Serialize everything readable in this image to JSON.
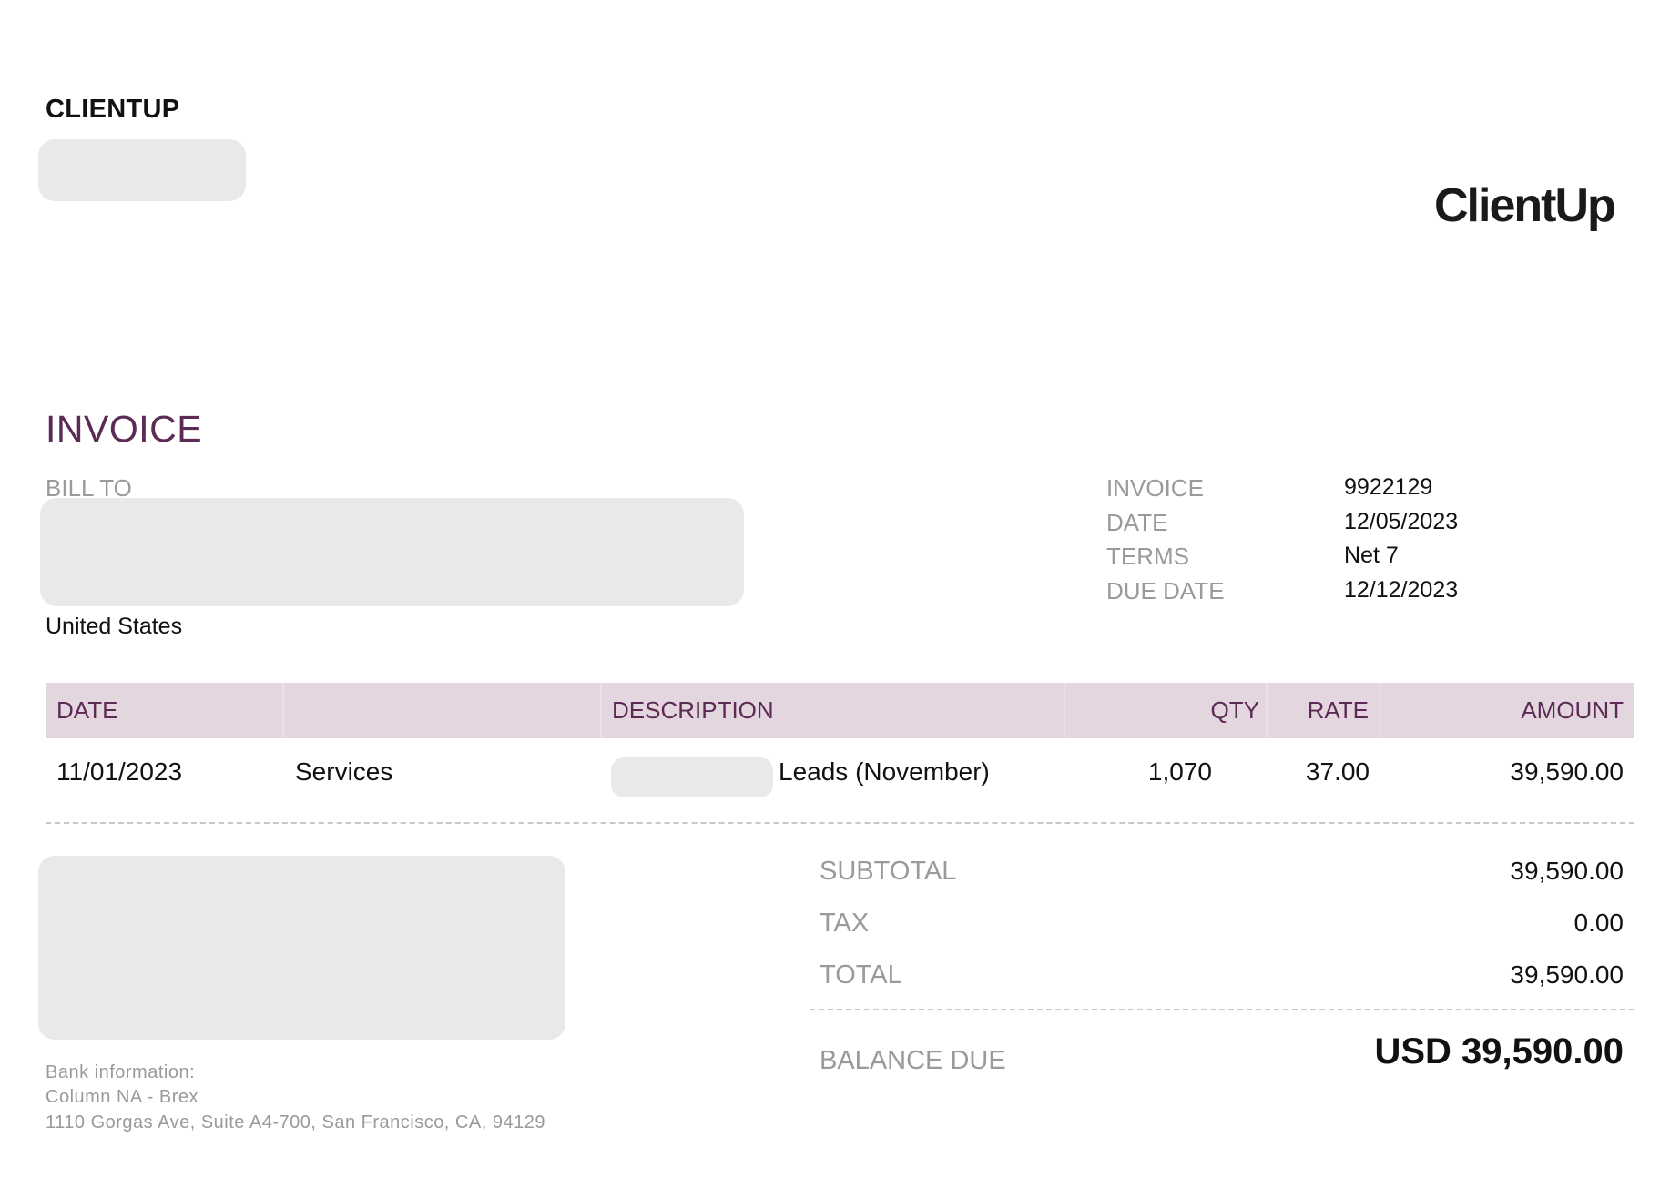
{
  "header": {
    "company_name": "CLIENTUP",
    "logo_text": "ClientUp"
  },
  "invoice": {
    "title": "INVOICE",
    "bill_to_label": "BILL TO",
    "bill_to_country": "United States",
    "meta": [
      {
        "label": "INVOICE",
        "value": "9922129"
      },
      {
        "label": "DATE",
        "value": "12/05/2023"
      },
      {
        "label": "TERMS",
        "value": "Net 7"
      },
      {
        "label": "DUE DATE",
        "value": "12/12/2023"
      }
    ]
  },
  "table": {
    "headers": {
      "date": "DATE",
      "type": "",
      "description": "DESCRIPTION",
      "qty": "QTY",
      "rate": "RATE",
      "amount": "AMOUNT"
    },
    "rows": [
      {
        "date": "11/01/2023",
        "type": "Services",
        "description": "Leads (November)",
        "qty": "1,070",
        "rate": "37.00",
        "amount": "39,590.00"
      }
    ]
  },
  "summary": {
    "subtotal_label": "SUBTOTAL",
    "subtotal_value": "39,590.00",
    "tax_label": "TAX",
    "tax_value": "0.00",
    "total_label": "TOTAL",
    "total_value": "39,590.00",
    "balance_due_label": "BALANCE DUE",
    "balance_due_value": "USD 39,590.00"
  },
  "bank": {
    "label": "Bank information:",
    "name": "Column NA - Brex",
    "address": "1110 Gorgas Ave, Suite A4-700, San Francisco, CA, 94129"
  },
  "colors": {
    "accent": "#5b2a55",
    "header_bg": "#e3d6df",
    "label_gray": "#9a9a9a",
    "redaction": "#e9e9e9"
  }
}
